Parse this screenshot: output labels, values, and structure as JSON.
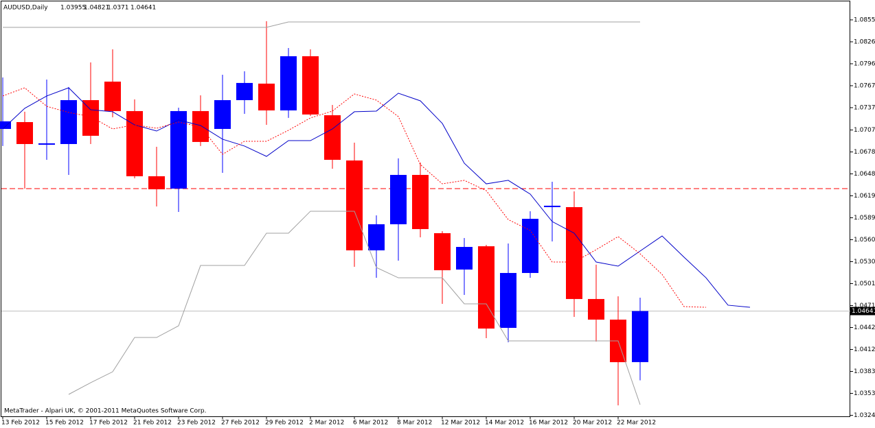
{
  "chart_data": {
    "type": "candlestick",
    "title": "AUDUSD,Daily",
    "credit": "MetaTrader - Alpari UK, © 2001-2011 MetaQuotes Software Corp.",
    "categories": [
      "13 Feb 2012",
      null,
      "15 Feb 2012",
      null,
      "17 Feb 2012",
      null,
      "21 Feb 2012",
      null,
      "23 Feb 2012",
      null,
      "27 Feb 2012",
      null,
      "29 Feb 2012",
      null,
      "2 Mar 2012",
      null,
      "6 Mar 2012",
      null,
      "8 Mar 2012",
      null,
      "12 Mar 2012",
      null,
      "14 Mar 2012",
      null,
      "16 Mar 2012",
      null,
      "20 Mar 2012",
      null,
      "22 Mar 2012",
      null,
      null,
      null,
      null,
      null,
      null
    ],
    "open": [
      1.07089,
      1.07181,
      1.06868,
      1.06886,
      1.07476,
      1.07725,
      1.07329,
      1.06453,
      1.06287,
      1.07329,
      1.07089,
      1.07476,
      1.07698,
      1.07338,
      1.08066,
      1.07273,
      1.06665,
      1.05457,
      1.05808,
      1.06471,
      1.05688,
      1.05199,
      1.05512,
      1.04415,
      1.05153,
      1.06038,
      1.06038,
      1.04803,
      1.04526,
      1.03955,
      null,
      null,
      null,
      null,
      null
    ],
    "high": [
      1.07781,
      1.0732,
      1.07753,
      1.07652,
      1.07983,
      1.08159,
      1.07486,
      1.06849,
      1.07375,
      1.07541,
      1.07817,
      1.07864,
      1.08537,
      1.08177,
      1.08159,
      1.07412,
      1.06905,
      1.05927,
      1.06693,
      1.06637,
      1.05715,
      1.05623,
      1.05531,
      1.05549,
      1.05983,
      1.06379,
      1.0625,
      1.05264,
      1.04839,
      1.04821,
      null,
      null,
      null,
      null,
      null
    ],
    "low": [
      1.06859,
      1.06287,
      1.06674,
      1.06471,
      1.06886,
      1.07246,
      1.06425,
      1.06047,
      1.05973,
      1.06859,
      1.06499,
      1.07292,
      1.07144,
      1.07237,
      1.07264,
      1.06554,
      1.05236,
      1.05088,
      1.05319,
      1.05632,
      1.04738,
      1.04858,
      1.04277,
      1.04222,
      1.05088,
      1.05577,
      1.04563,
      1.04231,
      1.03373,
      1.0371,
      null,
      null,
      null,
      null,
      null
    ],
    "close": [
      1.07191,
      1.06886,
      1.06886,
      1.07476,
      1.06997,
      1.07329,
      1.06453,
      1.06278,
      1.07329,
      1.06914,
      1.07476,
      1.07707,
      1.07338,
      1.08066,
      1.07283,
      1.06674,
      1.05457,
      1.05808,
      1.06471,
      1.05743,
      1.0519,
      1.05503,
      1.04406,
      1.05153,
      1.05881,
      1.06057,
      1.04803,
      1.04526,
      1.03954,
      1.04641,
      null,
      null,
      null,
      null,
      null
    ],
    "up_color": "#0000ff",
    "down_color": "#ff0000",
    "lines": [
      {
        "color": "#0000c8",
        "style": "solid",
        "values": [
          1.07089,
          1.07366,
          1.07532,
          1.07642,
          1.07347,
          1.0732,
          1.07144,
          1.07061,
          1.07209,
          1.07135,
          1.06951,
          1.06859,
          1.0672,
          1.06932,
          1.06932,
          1.07089,
          1.0732,
          1.07329,
          1.07569,
          1.07467,
          1.07163,
          1.06628,
          1.06351,
          1.06398,
          1.06213,
          1.05844,
          1.05688,
          1.053,
          1.05245,
          1.05448,
          1.0565,
          1.05365,
          1.05088,
          1.0472,
          1.04692
        ]
      },
      {
        "color": "#ff0000",
        "style": "dotted",
        "values": [
          1.07532,
          1.07642,
          1.07393,
          1.0731,
          1.07255,
          1.07089,
          1.07144,
          1.07098,
          1.07181,
          1.07117,
          1.06748,
          1.06923,
          1.06923,
          1.07071,
          1.07237,
          1.07329,
          1.07559,
          1.07476,
          1.07255,
          1.0661,
          1.06351,
          1.06398,
          1.06259,
          1.0587,
          1.05725,
          1.053,
          1.053,
          1.05466,
          1.05642,
          1.05411,
          1.05134,
          1.04701,
          1.04692,
          null,
          null
        ]
      },
      {
        "color": "#a0a0a0",
        "style": "solid",
        "values": [
          1.08454,
          1.08454,
          1.08454,
          1.08454,
          1.08454,
          1.08454,
          1.08454,
          1.08454,
          1.08454,
          1.08454,
          1.08454,
          1.08454,
          1.08454,
          1.08527,
          1.08527,
          1.08527,
          1.08527,
          1.08527,
          1.08527,
          1.08527,
          1.08527,
          1.08527,
          1.08527,
          1.08527,
          1.08527,
          1.08527,
          1.08527,
          1.08527,
          1.08527,
          1.08527,
          null,
          null,
          null,
          null,
          null
        ]
      },
      {
        "color": "#a0a0a0",
        "style": "solid",
        "values": [
          null,
          null,
          null,
          1.03521,
          1.03678,
          1.03825,
          1.04286,
          1.04286,
          1.04443,
          1.05254,
          1.05254,
          1.05254,
          1.05688,
          1.05688,
          1.05983,
          1.05983,
          1.05983,
          1.05227,
          1.05088,
          1.05088,
          1.05088,
          1.04738,
          1.04738,
          1.0424,
          1.0424,
          1.0424,
          1.0424,
          1.0424,
          1.0424,
          1.03383,
          null,
          null,
          null,
          null,
          null
        ]
      }
    ],
    "levels": [
      {
        "value": 1.06287,
        "color": "#ff0000",
        "style": "dashed"
      }
    ],
    "ylim": [
      1.03226,
      1.08822
    ],
    "yticks": [
      1.08555,
      {
        "value": 1.0826,
        "label": "1.08260"
      },
      1.07965,
      {
        "value": 1.0767,
        "label": "1.07670"
      },
      1.07375,
      1.07075,
      {
        "value": 1.0678,
        "label": "1.06780"
      },
      1.06485,
      {
        "value": 1.0619,
        "label": "1.06190"
      },
      1.05895,
      {
        "value": 1.056,
        "label": "1.05600"
      },
      1.05305,
      {
        "value": 1.0501,
        "label": "1.05010"
      },
      1.04715,
      {
        "value": 1.0442,
        "label": "1.04420"
      },
      1.04125,
      {
        "value": 1.0383,
        "label": "1.03830"
      },
      1.03535,
      {
        "value": 1.0324,
        "label": "1.03240"
      }
    ]
  }
}
